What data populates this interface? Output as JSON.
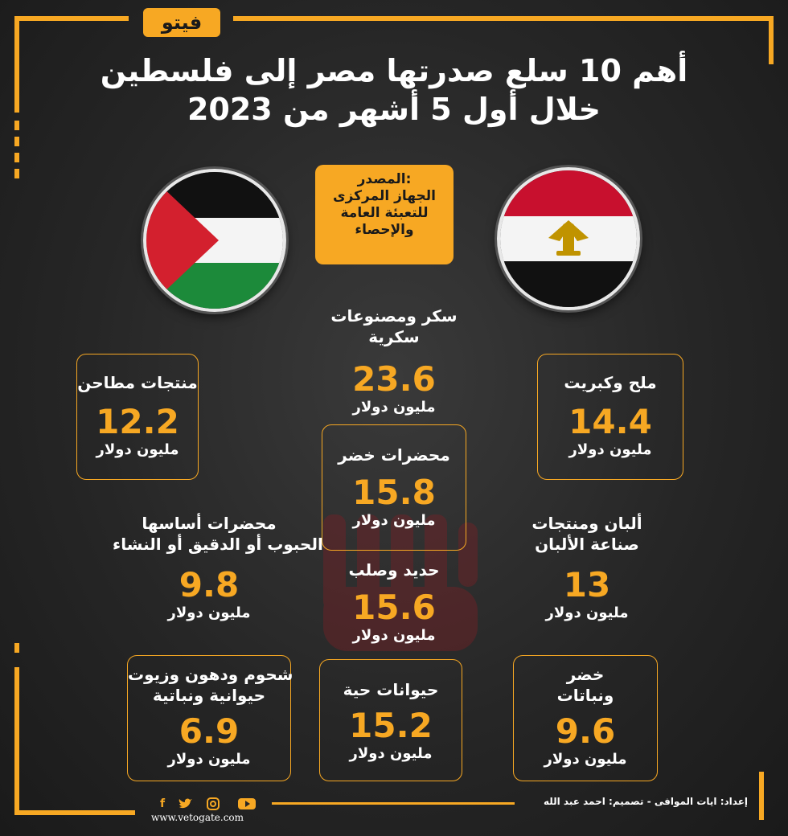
{
  "brand": {
    "logo_text": "فيتو",
    "website": "www.vetogate.com"
  },
  "title": {
    "line1": "أهم 10 سلع صدرتها مصر إلى فلسطين",
    "line2": "خلال أول 5 أشهر من 2023"
  },
  "source": {
    "label": "المصدر:",
    "line1": "الجهاز المركزى",
    "line2": "للتعبئة العامة",
    "line3": "والإحصاء"
  },
  "unit": "مليون دولار",
  "items": [
    {
      "label1": "سكر ومصنوعات",
      "label2": "سكرية",
      "value": "23.6"
    },
    {
      "label1": "منتجات مطاحن",
      "label2": "",
      "value": "12.2"
    },
    {
      "label1": "ملح وكبريت",
      "label2": "",
      "value": "14.4"
    },
    {
      "label1": "محضرات خضر",
      "label2": "",
      "value": "15.8"
    },
    {
      "label1": "محضرات أساسها",
      "label2": "الحبوب أو الدقيق أو النشاء",
      "value": "9.8"
    },
    {
      "label1": "ألبان ومنتجات",
      "label2": "صناعة الألبان",
      "value": "13"
    },
    {
      "label1": "حديد وصلب",
      "label2": "",
      "value": "15.6"
    },
    {
      "label1": "شحوم ودهون وزيوت",
      "label2": "حيوانية ونباتية",
      "value": "6.9"
    },
    {
      "label1": "حيوانات حية",
      "label2": "",
      "value": "15.2"
    },
    {
      "label1": "خضر",
      "label2": "ونباتات",
      "value": "9.6"
    }
  ],
  "credits": "إعداد: ايات الموافى  -  تصميم: احمد عبد الله",
  "social_icons": [
    "facebook-icon",
    "twitter-icon",
    "instagram-icon",
    "youtube-icon"
  ],
  "colors": {
    "accent": "#f7a823",
    "background": "#262626"
  }
}
